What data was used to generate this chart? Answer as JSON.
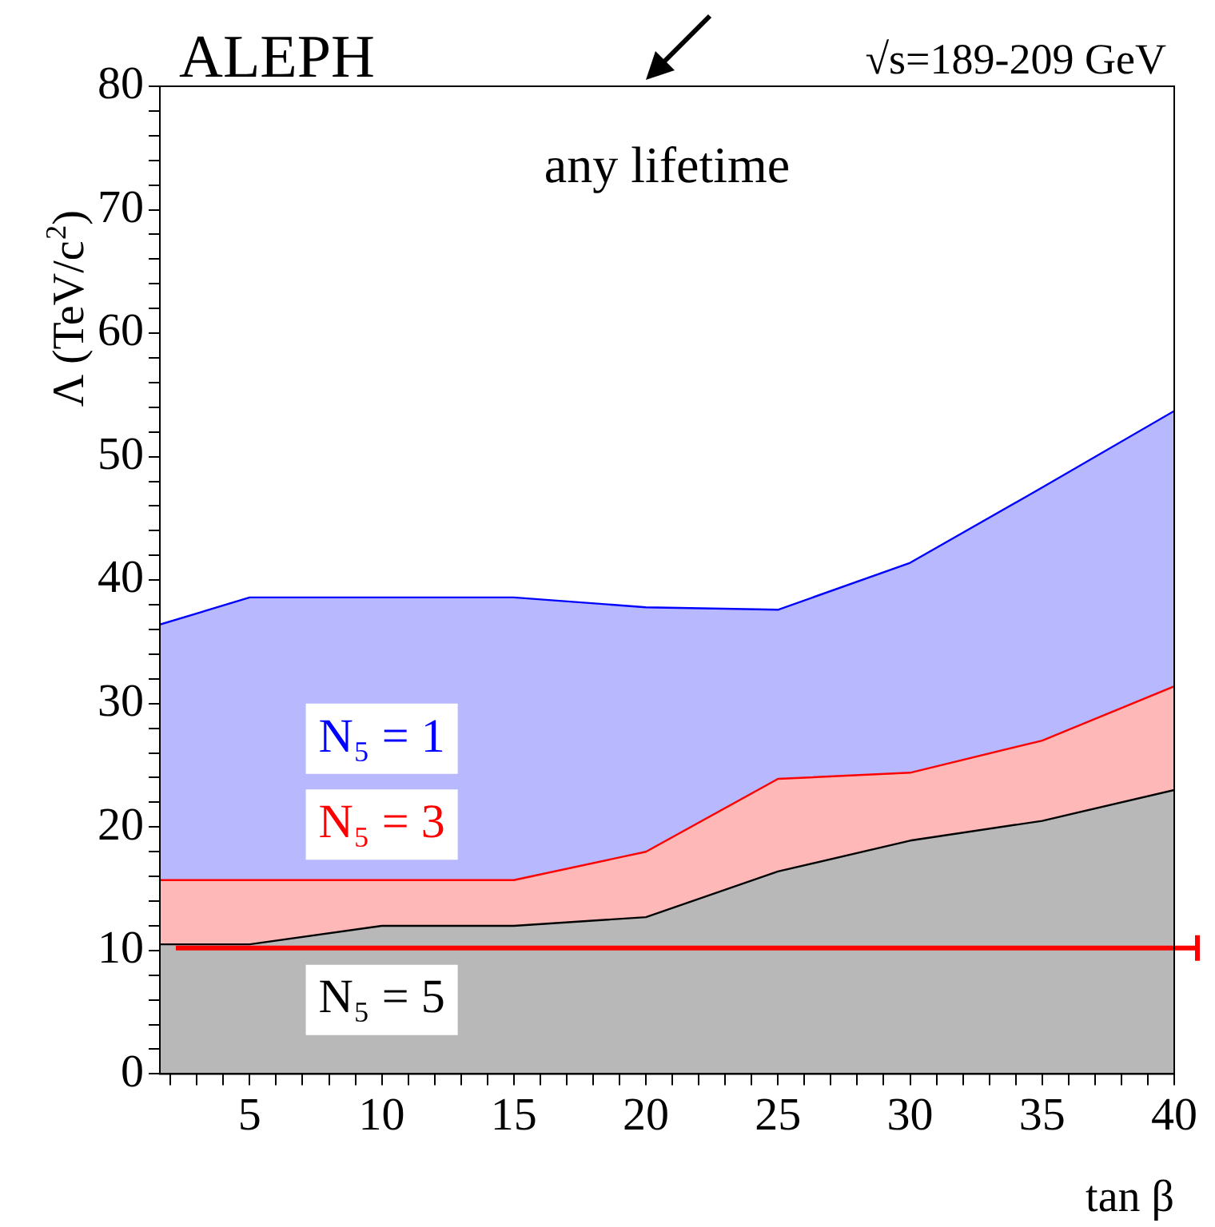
{
  "chart_data": {
    "type": "area",
    "title": "ALEPH",
    "subtitle": "√s=189-209 GeV",
    "xlabel": "tan β",
    "ylabel": "Λ (TeV/c$^{2}$)",
    "annotations": [
      "any lifetime"
    ],
    "x": [
      1.6,
      5,
      10,
      15,
      20,
      25,
      30,
      35,
      40
    ],
    "series": [
      {
        "name": "N₅ = 5",
        "color": "#000000",
        "values": [
          10.5,
          10.5,
          12.0,
          12.0,
          12.7,
          16.4,
          18.9,
          20.5,
          23.0
        ]
      },
      {
        "name": "N₅ = 3",
        "color": "#ff0000",
        "values": [
          15.7,
          15.7,
          15.7,
          15.7,
          18.0,
          23.9,
          24.4,
          27.0,
          31.4
        ]
      },
      {
        "name": "N₅ = 1",
        "color": "#0000ff",
        "values": [
          36.4,
          38.6,
          38.6,
          38.6,
          37.8,
          37.6,
          41.4,
          47.5,
          53.7
        ]
      }
    ],
    "xlim": [
      1.6,
      40
    ],
    "xticks": [
      {
        "value": 2,
        "label": null
      },
      {
        "value": 3,
        "label": null
      },
      {
        "value": 4,
        "label": null
      },
      5,
      {
        "value": 6,
        "label": null
      },
      {
        "value": 7,
        "label": null
      },
      {
        "value": 8,
        "label": null
      },
      {
        "value": 9,
        "label": null
      },
      10,
      {
        "value": 11,
        "label": null
      },
      {
        "value": 12,
        "label": null
      },
      {
        "value": 13,
        "label": null
      },
      {
        "value": 14,
        "label": null
      },
      15,
      {
        "value": 16,
        "label": null
      },
      {
        "value": 17,
        "label": null
      },
      {
        "value": 18,
        "label": null
      },
      {
        "value": 19,
        "label": null
      },
      20,
      {
        "value": 21,
        "label": null
      },
      {
        "value": 22,
        "label": null
      },
      {
        "value": 23,
        "label": null
      },
      {
        "value": 24,
        "label": null
      },
      25,
      {
        "value": 26,
        "label": null
      },
      {
        "value": 27,
        "label": null
      },
      {
        "value": 28,
        "label": null
      },
      {
        "value": 29,
        "label": null
      },
      30,
      {
        "value": 31,
        "label": null
      },
      {
        "value": 32,
        "label": null
      },
      {
        "value": 33,
        "label": null
      },
      {
        "value": 34,
        "label": null
      },
      35,
      {
        "value": 36,
        "label": null
      },
      {
        "value": 37,
        "label": null
      },
      {
        "value": 38,
        "label": null
      },
      {
        "value": 39,
        "label": null
      },
      40
    ],
    "ylim": [
      0,
      80
    ],
    "yticks": [
      0,
      {
        "value": 2,
        "label": null
      },
      {
        "value": 4,
        "label": null
      },
      {
        "value": 6,
        "label": null
      },
      {
        "value": 8,
        "label": null
      },
      10,
      {
        "value": 12,
        "label": null
      },
      {
        "value": 14,
        "label": null
      },
      {
        "value": 16,
        "label": null
      },
      {
        "value": 18,
        "label": null
      },
      20,
      {
        "value": 22,
        "label": null
      },
      {
        "value": 24,
        "label": null
      },
      {
        "value": 26,
        "label": null
      },
      {
        "value": 28,
        "label": null
      },
      30,
      {
        "value": 32,
        "label": null
      },
      {
        "value": 34,
        "label": null
      },
      {
        "value": 36,
        "label": null
      },
      {
        "value": 38,
        "label": null
      },
      40,
      {
        "value": 42,
        "label": null
      },
      {
        "value": 44,
        "label": null
      },
      {
        "value": 46,
        "label": null
      },
      {
        "value": 48,
        "label": null
      },
      50,
      {
        "value": 52,
        "label": null
      },
      {
        "value": 54,
        "label": null
      },
      {
        "value": 56,
        "label": null
      },
      {
        "value": 58,
        "label": null
      },
      60,
      {
        "value": 62,
        "label": null
      },
      {
        "value": 64,
        "label": null
      },
      {
        "value": 66,
        "label": null
      },
      {
        "value": 68,
        "label": null
      },
      70,
      {
        "value": 72,
        "label": null
      },
      {
        "value": 74,
        "label": null
      },
      {
        "value": 76,
        "label": null
      },
      {
        "value": 78,
        "label": null
      },
      80
    ],
    "ref_lines": [
      {
        "axis": "y",
        "value": 10.2,
        "color": "#ff0000"
      }
    ],
    "grid": false,
    "legend": false,
    "marker": "none",
    "line_style": "solid"
  }
}
